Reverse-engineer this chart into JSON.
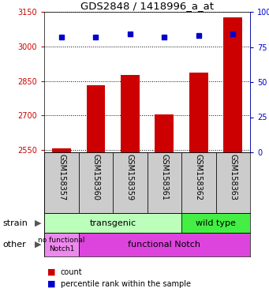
{
  "title": "GDS2848 / 1418996_a_at",
  "samples": [
    "GSM158357",
    "GSM158360",
    "GSM158359",
    "GSM158361",
    "GSM158362",
    "GSM158363"
  ],
  "counts": [
    2557,
    2832,
    2877,
    2704,
    2886,
    3127
  ],
  "percentiles": [
    82,
    82,
    84,
    82,
    83,
    84
  ],
  "ylim_left": [
    2540,
    3150
  ],
  "ylim_right": [
    0,
    100
  ],
  "yticks_left": [
    2550,
    2700,
    2850,
    3000,
    3150
  ],
  "yticks_right": [
    0,
    25,
    50,
    75,
    100
  ],
  "bar_color": "#cc0000",
  "dot_color": "#0000cc",
  "left_axis_color": "#cc0000",
  "right_axis_color": "#0000cc",
  "strain_trans_color": "#bbffbb",
  "strain_wild_color": "#44ee44",
  "other_nofunc_color": "#ee88ee",
  "other_func_color": "#dd44dd",
  "xlabels_bg": "#cccccc",
  "fig_width": 3.41,
  "fig_height": 3.84,
  "dpi": 100
}
